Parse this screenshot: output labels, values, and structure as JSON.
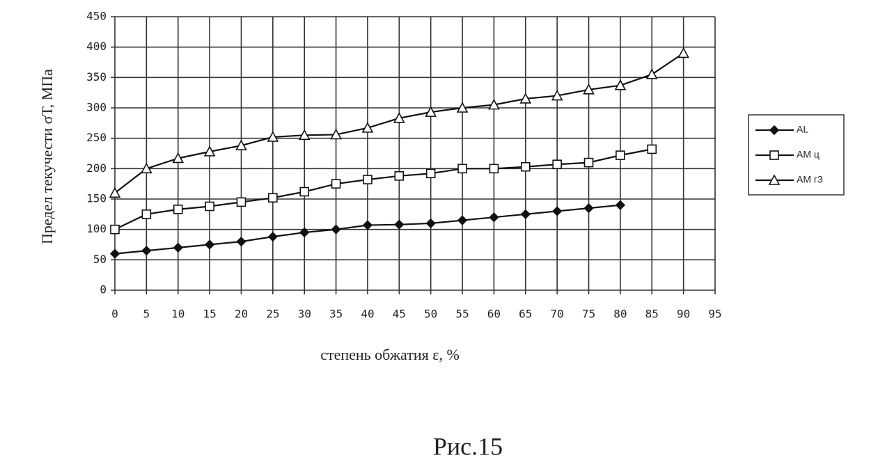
{
  "chart_data": {
    "type": "line",
    "y_label": "Предел текучести σТ, МПа",
    "x_label": "степень обжатия ε, %",
    "caption": "Рис.15",
    "xlim": [
      0,
      95
    ],
    "ylim": [
      0,
      450
    ],
    "xticks": [
      0,
      5,
      10,
      15,
      20,
      25,
      30,
      35,
      40,
      45,
      50,
      55,
      60,
      65,
      70,
      75,
      80,
      85,
      90,
      95
    ],
    "yticks": [
      0,
      50,
      100,
      150,
      200,
      250,
      300,
      350,
      400,
      450
    ],
    "grid": true,
    "legend": "right",
    "series": [
      {
        "name": "AL",
        "color": "#111",
        "marker": "diamond",
        "x": [
          0,
          5,
          10,
          15,
          20,
          25,
          30,
          35,
          40,
          45,
          50,
          55,
          60,
          65,
          70,
          75,
          80
        ],
        "values": [
          60,
          65,
          70,
          75,
          80,
          88,
          95,
          100,
          107,
          108,
          110,
          115,
          120,
          125,
          130,
          135,
          140
        ]
      },
      {
        "name": "AM ц",
        "color": "#111",
        "marker": "square",
        "x": [
          0,
          5,
          10,
          15,
          20,
          25,
          30,
          35,
          40,
          45,
          50,
          55,
          60,
          65,
          70,
          75,
          80,
          85
        ],
        "values": [
          100,
          125,
          133,
          138,
          145,
          152,
          162,
          175,
          182,
          188,
          192,
          200,
          200,
          203,
          207,
          210,
          222,
          232
        ]
      },
      {
        "name": "AM г3",
        "color": "#111",
        "marker": "triangle",
        "x": [
          0,
          5,
          10,
          15,
          20,
          25,
          30,
          35,
          40,
          45,
          50,
          55,
          60,
          65,
          70,
          75,
          80,
          85,
          90
        ],
        "values": [
          160,
          200,
          217,
          228,
          238,
          252,
          255,
          256,
          267,
          283,
          293,
          300,
          305,
          315,
          320,
          330,
          337,
          355,
          390
        ]
      }
    ]
  }
}
